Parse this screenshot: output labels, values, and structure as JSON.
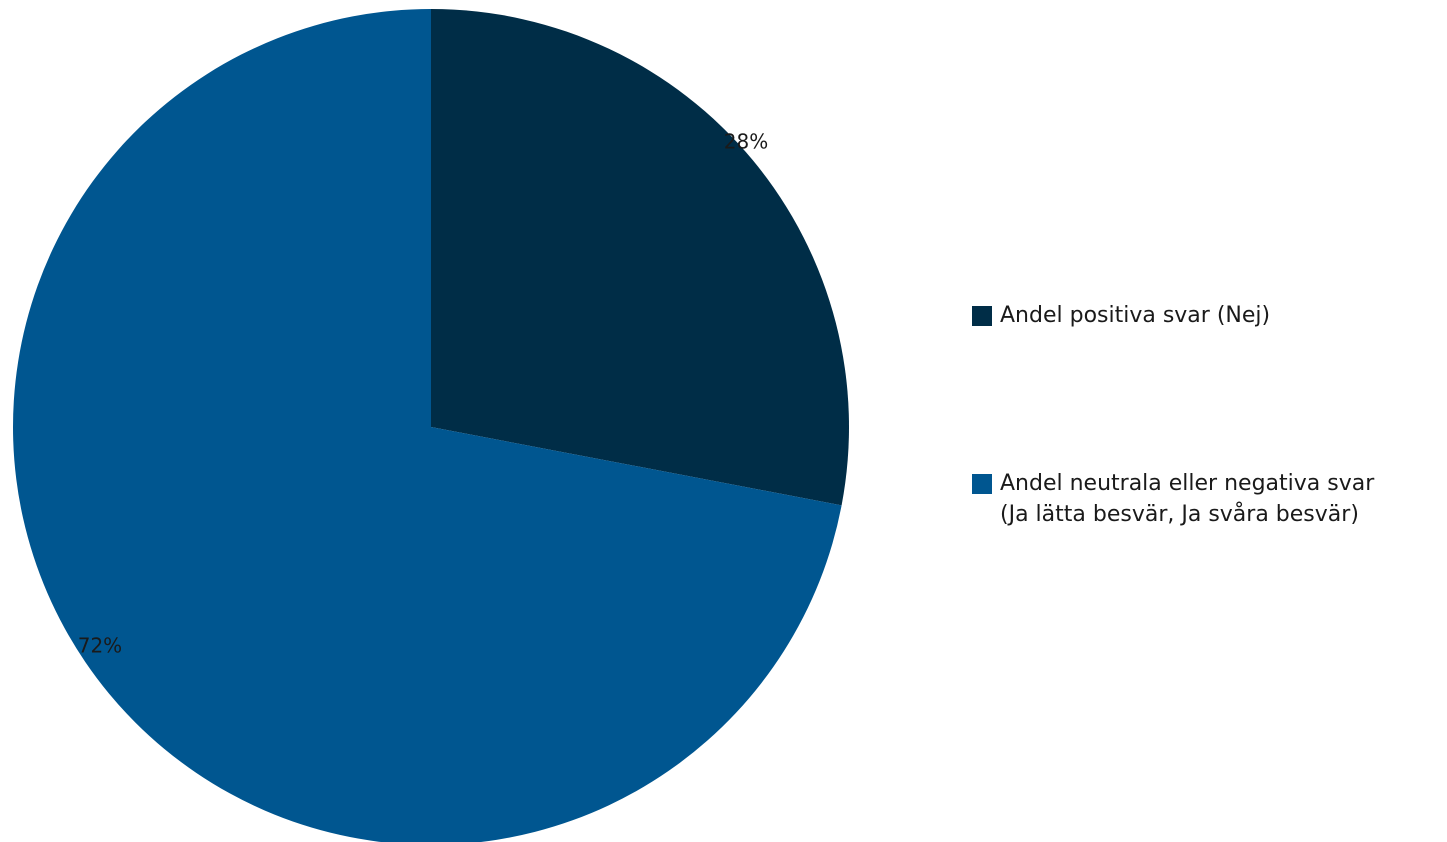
{
  "chart_data": {
    "type": "pie",
    "title": "",
    "slices": [
      {
        "label": "Andel positiva svar (Nej)",
        "value": 28,
        "value_label": "28%",
        "color": "#002d47"
      },
      {
        "label": "Andel neutrala eller negativa svar\n(Ja lätta besvär, Ja svåra besvär)",
        "value": 72,
        "value_label": "72%",
        "color": "#005690"
      }
    ],
    "start_angle": "12 o'clock",
    "direction": "clockwise",
    "legend_position": "right"
  }
}
